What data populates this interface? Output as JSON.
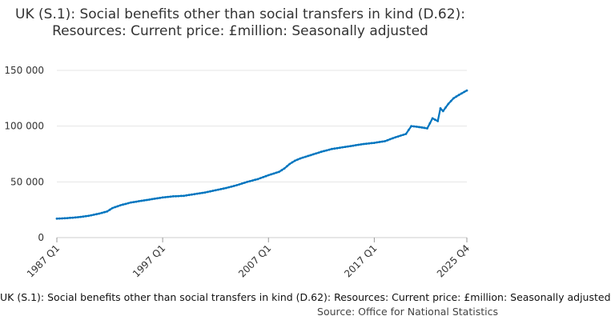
{
  "chart_data": {
    "type": "line",
    "title": "UK (S.1): Social benefits other than social transfers in kind (D.62): Resources: Current price: £million: Seasonally adjusted",
    "xlabel": "",
    "ylabel": "",
    "ylim": [
      0,
      150000
    ],
    "yticks": [
      {
        "value": 0,
        "label": "0"
      },
      {
        "value": 50000,
        "label": "50 000"
      },
      {
        "value": 100000,
        "label": "100 000"
      },
      {
        "value": 150000,
        "label": "150 000"
      }
    ],
    "xticks": [
      "1987 Q1",
      "1997 Q1",
      "2007 Q1",
      "2017 Q1",
      "2025 Q4"
    ],
    "x_range": [
      "1987 Q1",
      "2025 Q4"
    ],
    "series": [
      {
        "name": "UK (S.1): Social benefits other than social transfers in kind (D.62): Resources: Current price: £million: Seasonally adjusted",
        "color": "#0075bf",
        "points": [
          {
            "t": 1987.0,
            "v": 17000
          },
          {
            "t": 1988.0,
            "v": 17500
          },
          {
            "t": 1989.0,
            "v": 18300
          },
          {
            "t": 1990.0,
            "v": 19500
          },
          {
            "t": 1991.0,
            "v": 21500
          },
          {
            "t": 1991.75,
            "v": 23500
          },
          {
            "t": 1992.25,
            "v": 26500
          },
          {
            "t": 1993.0,
            "v": 29000
          },
          {
            "t": 1994.0,
            "v": 31500
          },
          {
            "t": 1995.0,
            "v": 33000
          },
          {
            "t": 1996.0,
            "v": 34500
          },
          {
            "t": 1997.0,
            "v": 36000
          },
          {
            "t": 1998.0,
            "v": 37000
          },
          {
            "t": 1999.0,
            "v": 37500
          },
          {
            "t": 2000.0,
            "v": 39000
          },
          {
            "t": 2001.0,
            "v": 40500
          },
          {
            "t": 2002.0,
            "v": 42500
          },
          {
            "t": 2003.0,
            "v": 44500
          },
          {
            "t": 2004.0,
            "v": 47000
          },
          {
            "t": 2005.0,
            "v": 50000
          },
          {
            "t": 2006.0,
            "v": 52500
          },
          {
            "t": 2007.0,
            "v": 56000
          },
          {
            "t": 2008.0,
            "v": 59000
          },
          {
            "t": 2008.5,
            "v": 62000
          },
          {
            "t": 2009.0,
            "v": 66000
          },
          {
            "t": 2009.5,
            "v": 69000
          },
          {
            "t": 2010.0,
            "v": 71000
          },
          {
            "t": 2011.0,
            "v": 74000
          },
          {
            "t": 2012.0,
            "v": 77000
          },
          {
            "t": 2013.0,
            "v": 79500
          },
          {
            "t": 2014.0,
            "v": 81000
          },
          {
            "t": 2015.0,
            "v": 82500
          },
          {
            "t": 2016.0,
            "v": 84000
          },
          {
            "t": 2017.0,
            "v": 85000
          },
          {
            "t": 2018.0,
            "v": 86500
          },
          {
            "t": 2019.0,
            "v": 90000
          },
          {
            "t": 2020.0,
            "v": 93000
          },
          {
            "t": 2020.5,
            "v": 100000
          },
          {
            "t": 2021.0,
            "v": 99500
          },
          {
            "t": 2022.0,
            "v": 98000
          },
          {
            "t": 2022.5,
            "v": 107000
          },
          {
            "t": 2023.0,
            "v": 104500
          },
          {
            "t": 2023.25,
            "v": 116000
          },
          {
            "t": 2023.5,
            "v": 113500
          },
          {
            "t": 2024.0,
            "v": 120000
          },
          {
            "t": 2024.5,
            "v": 125000
          },
          {
            "t": 2025.0,
            "v": 128000
          },
          {
            "t": 2025.75,
            "v": 132000
          }
        ]
      }
    ]
  },
  "caption": {
    "description": "UK (S.1): Social benefits other than social transfers in kind (D.62): Resources: Current price: £million: Seasonally adjusted",
    "source_label": "Source: Office for National Statistics"
  }
}
